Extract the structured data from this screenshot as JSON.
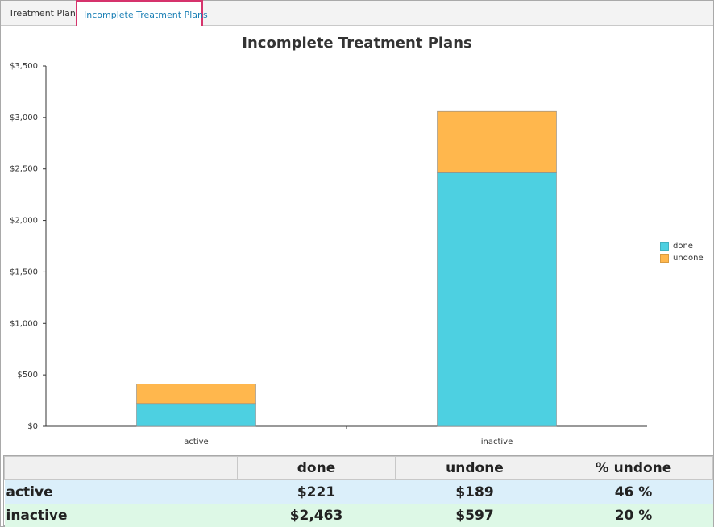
{
  "tabs": [
    {
      "label": "Treatment Plans"
    },
    {
      "label": "Incomplete Treatment Plans"
    }
  ],
  "chart_data": {
    "type": "bar",
    "stacked": true,
    "title": "Incomplete Treatment Plans",
    "categories": [
      "active",
      "inactive"
    ],
    "series": [
      {
        "name": "done",
        "values": [
          221,
          2463
        ],
        "color": "#4dd0e1"
      },
      {
        "name": "undone",
        "values": [
          189,
          597
        ],
        "color": "#ffb74d"
      }
    ],
    "ylim": [
      0,
      3500
    ],
    "yticks": [
      "$0",
      "$500",
      "$1,000",
      "$1,500",
      "$2,000",
      "$2,500",
      "$3,000",
      "$3,500"
    ],
    "ytick_values": [
      0,
      500,
      1000,
      1500,
      2000,
      2500,
      3000,
      3500
    ],
    "legend_position": "right",
    "grid": false
  },
  "table": {
    "headers": [
      "",
      "done",
      "undone",
      "% undone"
    ],
    "rows": [
      {
        "name": "active",
        "done": "$221",
        "undone": "$189",
        "pct": "46 %"
      },
      {
        "name": "inactive",
        "done": "$2,463",
        "undone": "$597",
        "pct": "20 %"
      }
    ]
  }
}
